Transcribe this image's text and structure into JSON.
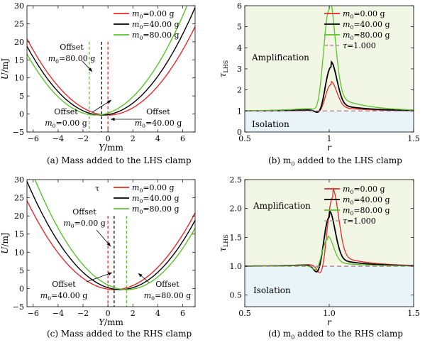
{
  "figure": {
    "captions": [
      "(a) Mass added to the LHS clamp",
      "(b) m",
      "(c) Mass added to the RHS clamp",
      "(d) m"
    ],
    "caption_b_sub": "0",
    "caption_b_rest": " added to the LHS clamp",
    "caption_d_sub": "0",
    "caption_d_rest": " added to the RHS clamp"
  },
  "colors": {
    "red": "#e8282b",
    "black": "#000000",
    "green": "#58c42a",
    "dashed": "#b07aa1",
    "amp_bg": "#f1f7e4",
    "iso_bg": "#e8f4f7"
  },
  "chart_data": [
    {
      "id": "a",
      "type": "line",
      "xlabel": "Y/mm",
      "ylabel": "U/mJ",
      "xlim": [
        -6.5,
        7
      ],
      "ylim": [
        -5,
        30
      ],
      "xticks": [
        -6,
        -4,
        -2,
        0,
        2,
        4,
        6
      ],
      "yticks": [
        -5,
        0,
        5,
        10,
        15,
        20,
        25,
        30
      ],
      "legend": "top-right",
      "series": [
        {
          "name": "m0=0.00 g",
          "color": "#e8282b",
          "vertex": 0.0,
          "a": 0.5,
          "offset_line": 0.0
        },
        {
          "name": "m0=40.00 g",
          "color": "#000000",
          "vertex": -0.5,
          "a": 0.53,
          "offset_line": -0.5
        },
        {
          "name": "m0=80.00 g",
          "color": "#58c42a",
          "vertex": -1.0,
          "a": 0.56,
          "offset_line": -1.5
        }
      ],
      "annotations": [
        {
          "lines": [
            "Offset",
            "m0=80.00 g"
          ]
        },
        {
          "lines": [
            "Offset",
            "m0=0.00 g"
          ]
        },
        {
          "lines": [
            "Offset",
            "m0=40.00 g"
          ]
        }
      ]
    },
    {
      "id": "b",
      "type": "line",
      "xlabel": "r",
      "ylabel": "τLHS",
      "xlim": [
        0.5,
        1.5
      ],
      "ylim": [
        0,
        6
      ],
      "xticks": [
        0.5,
        1.0,
        1.5
      ],
      "yticks": [
        0,
        1,
        2,
        3,
        4,
        5,
        6
      ],
      "legend": "top-right",
      "regions": [
        "Amplification",
        "Isolation"
      ],
      "series": [
        {
          "name": "m0=0.00 g",
          "color": "#e8282b",
          "peak": 2.2,
          "peak_r": 1.01,
          "dip": 0.75
        },
        {
          "name": "m0=40.00 g",
          "color": "#000000",
          "peak": 3.0,
          "peak_r": 1.01,
          "dip": 0.62
        },
        {
          "name": "m0=80.00 g",
          "color": "#58c42a",
          "peak": 5.6,
          "peak_r": 1.0,
          "dip": 0.55
        },
        {
          "name": "τ=1.000",
          "color": "#b07aa1",
          "dashed": true,
          "value": 1.0
        }
      ]
    },
    {
      "id": "c",
      "type": "line",
      "xlabel": "Y/mm",
      "ylabel": "U/mJ",
      "xlim": [
        -6.5,
        7
      ],
      "ylim": [
        -5,
        30
      ],
      "xticks": [
        -6,
        -4,
        -2,
        0,
        2,
        4,
        6
      ],
      "yticks": [
        -5,
        0,
        5,
        10,
        15,
        20,
        25,
        30
      ],
      "legend": "top-right",
      "series": [
        {
          "name": "m0=0.00 g",
          "color": "#e8282b",
          "vertex": 0.5,
          "a": 0.5,
          "offset_line": 0.0
        },
        {
          "name": "m0=40.00 g",
          "color": "#000000",
          "vertex": 1.0,
          "a": 0.53,
          "offset_line": 0.5
        },
        {
          "name": "m0=80.00 g",
          "color": "#58c42a",
          "vertex": 1.5,
          "a": 0.56,
          "offset_line": 1.5
        }
      ],
      "annotations": [
        {
          "lines": [
            "Offset",
            "m0=0.00 g"
          ]
        },
        {
          "lines": [
            "Offset",
            "m0=40.00 g"
          ]
        },
        {
          "lines": [
            "Offset",
            "m0=80.00 g"
          ]
        }
      ],
      "stray_label": "τ"
    },
    {
      "id": "d",
      "type": "line",
      "xlabel": "r",
      "ylabel": "τLHS",
      "xlim": [
        0.5,
        1.5
      ],
      "ylim": [
        0.3,
        2.5
      ],
      "xticks": [
        0.5,
        1.0,
        1.5
      ],
      "yticks": [
        0.5,
        1.0,
        1.5,
        2.0,
        2.5
      ],
      "legend": "top-right",
      "regions": [
        "Amplification",
        "Isolation"
      ],
      "series": [
        {
          "name": "m0=0.00 g",
          "color": "#e8282b",
          "peak": 2.15,
          "peak_r": 1.02,
          "dip": 0.68
        },
        {
          "name": "m0=40.00 g",
          "color": "#000000",
          "peak": 1.82,
          "peak_r": 1.0,
          "dip": 0.75
        },
        {
          "name": "m0=80.00 g",
          "color": "#58c42a",
          "peak": 1.45,
          "peak_r": 0.99,
          "dip": 0.86
        },
        {
          "name": "τ=1.000",
          "color": "#b07aa1",
          "dashed": true,
          "value": 1.0
        }
      ]
    }
  ]
}
